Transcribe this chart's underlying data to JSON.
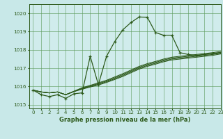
{
  "title": "Graphe pression niveau de la mer (hPa)",
  "bg_color": "#c8e8e8",
  "plot_bg_color": "#d0ecec",
  "line_color": "#2d5a1b",
  "grid_color": "#5a9a5a",
  "xlim": [
    -0.5,
    23
  ],
  "ylim": [
    1014.8,
    1020.5
  ],
  "yticks": [
    1015,
    1016,
    1017,
    1018,
    1019,
    1020
  ],
  "xticks": [
    0,
    1,
    2,
    3,
    4,
    5,
    6,
    7,
    8,
    9,
    10,
    11,
    12,
    13,
    14,
    15,
    16,
    17,
    18,
    19,
    20,
    21,
    22,
    23
  ],
  "main_series": [
    1015.8,
    1015.55,
    1015.45,
    1015.55,
    1015.35,
    1015.6,
    1015.65,
    1017.65,
    1016.1,
    1017.65,
    1018.45,
    1019.1,
    1019.5,
    1019.8,
    1019.78,
    1018.95,
    1018.8,
    1018.8,
    1017.85,
    1017.75,
    1017.7,
    1017.75,
    1017.8,
    1017.85
  ],
  "diag_series": [
    [
      1015.8,
      1015.7,
      1015.65,
      1015.7,
      1015.55,
      1015.72,
      1015.85,
      1015.97,
      1016.08,
      1016.22,
      1016.38,
      1016.55,
      1016.75,
      1016.95,
      1017.1,
      1017.22,
      1017.35,
      1017.45,
      1017.5,
      1017.55,
      1017.6,
      1017.65,
      1017.7,
      1017.78
    ],
    [
      1015.8,
      1015.7,
      1015.65,
      1015.7,
      1015.55,
      1015.72,
      1015.87,
      1016.0,
      1016.12,
      1016.26,
      1016.42,
      1016.6,
      1016.8,
      1017.0,
      1017.15,
      1017.27,
      1017.4,
      1017.5,
      1017.55,
      1017.6,
      1017.65,
      1017.7,
      1017.75,
      1017.82
    ],
    [
      1015.8,
      1015.7,
      1015.65,
      1015.7,
      1015.55,
      1015.73,
      1015.9,
      1016.03,
      1016.16,
      1016.3,
      1016.47,
      1016.65,
      1016.85,
      1017.05,
      1017.2,
      1017.32,
      1017.45,
      1017.55,
      1017.6,
      1017.65,
      1017.7,
      1017.75,
      1017.8,
      1017.87
    ],
    [
      1015.8,
      1015.7,
      1015.65,
      1015.7,
      1015.55,
      1015.74,
      1015.93,
      1016.06,
      1016.2,
      1016.34,
      1016.52,
      1016.7,
      1016.9,
      1017.1,
      1017.25,
      1017.37,
      1017.5,
      1017.6,
      1017.65,
      1017.7,
      1017.75,
      1017.8,
      1017.85,
      1017.92
    ]
  ]
}
